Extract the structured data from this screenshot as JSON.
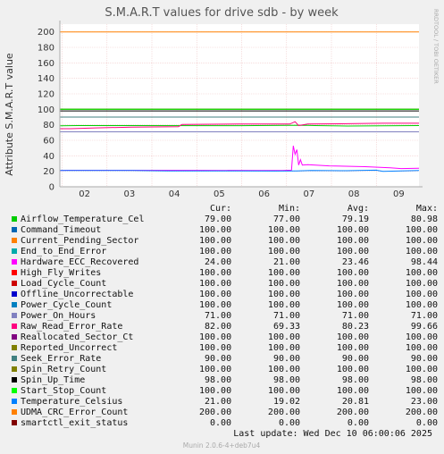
{
  "chart_data": {
    "type": "line",
    "title": "S.M.A.R.T values for drive sdb - by week",
    "ylabel": "Attribute S.M.A.R.T value",
    "xlabel": "",
    "ylim": [
      0,
      210
    ],
    "yticks": [
      0,
      20,
      40,
      60,
      80,
      100,
      120,
      140,
      160,
      180,
      200
    ],
    "x_labels": [
      "02",
      "03",
      "04",
      "05",
      "06",
      "07",
      "08",
      "09"
    ],
    "grid": true,
    "columns": [
      "Cur:",
      "Min:",
      "Avg:",
      "Max:"
    ],
    "series": [
      {
        "name": "Airflow_Temperature_Cel",
        "color": "#00cc00",
        "cur": "79.00",
        "min": "77.00",
        "avg": "79.19",
        "max": "80.98",
        "points": [
          [
            0,
            78.8
          ],
          [
            0.05,
            79
          ],
          [
            0.5,
            78.9
          ],
          [
            0.68,
            79.5
          ],
          [
            0.71,
            79
          ],
          [
            0.8,
            78.5
          ],
          [
            0.9,
            78.8
          ],
          [
            1,
            79
          ]
        ]
      },
      {
        "name": "Command_Timeout",
        "color": "#0066b3",
        "cur": "100.00",
        "min": "100.00",
        "avg": "100.00",
        "max": "100.00",
        "points": [
          [
            0,
            100
          ],
          [
            1,
            100
          ]
        ]
      },
      {
        "name": "Current_Pending_Sector",
        "color": "#ff8000",
        "cur": "100.00",
        "min": "100.00",
        "avg": "100.00",
        "max": "100.00",
        "points": [
          [
            0,
            100
          ],
          [
            1,
            100
          ]
        ]
      },
      {
        "name": "End_to_End_Error",
        "color": "#00aaaa",
        "cur": "100.00",
        "min": "100.00",
        "avg": "100.00",
        "max": "100.00",
        "points": [
          [
            0,
            100
          ],
          [
            1,
            100
          ]
        ]
      },
      {
        "name": "Hardware_ECC_Recovered",
        "color": "#ff00ff",
        "cur": "24.00",
        "min": "21.00",
        "avg": "23.46",
        "max": "98.44",
        "points": [
          [
            0,
            21
          ],
          [
            0.02,
            21.3
          ],
          [
            0.4,
            21.2
          ],
          [
            0.55,
            21
          ],
          [
            0.62,
            21
          ],
          [
            0.645,
            21.5
          ],
          [
            0.65,
            53
          ],
          [
            0.655,
            42
          ],
          [
            0.66,
            48
          ],
          [
            0.665,
            28
          ],
          [
            0.67,
            35
          ],
          [
            0.675,
            28
          ],
          [
            0.69,
            28.5
          ],
          [
            0.75,
            27
          ],
          [
            0.85,
            26
          ],
          [
            0.92,
            24.5
          ],
          [
            0.95,
            23.5
          ],
          [
            1,
            24
          ]
        ]
      },
      {
        "name": "High_Fly_Writes",
        "color": "#ff0000",
        "cur": "100.00",
        "min": "100.00",
        "avg": "100.00",
        "max": "100.00",
        "points": [
          [
            0,
            100
          ],
          [
            1,
            100
          ]
        ]
      },
      {
        "name": "Load_Cycle_Count",
        "color": "#cc0000",
        "cur": "100.00",
        "min": "100.00",
        "avg": "100.00",
        "max": "100.00",
        "points": [
          [
            0,
            100
          ],
          [
            1,
            100
          ]
        ]
      },
      {
        "name": "Offline_Uncorrectable",
        "color": "#0000cc",
        "cur": "100.00",
        "min": "100.00",
        "avg": "100.00",
        "max": "100.00",
        "points": [
          [
            0,
            100
          ],
          [
            1,
            100
          ]
        ]
      },
      {
        "name": "Power_Cycle_Count",
        "color": "#0080c0",
        "cur": "100.00",
        "min": "100.00",
        "avg": "100.00",
        "max": "100.00",
        "points": [
          [
            0,
            100
          ],
          [
            1,
            100
          ]
        ]
      },
      {
        "name": "Power_On_Hours",
        "color": "#8080c0",
        "cur": "71.00",
        "min": "71.00",
        "avg": "71.00",
        "max": "71.00",
        "points": [
          [
            0,
            71
          ],
          [
            1,
            71
          ]
        ]
      },
      {
        "name": "Raw_Read_Error_Rate",
        "color": "#ff0080",
        "cur": "82.00",
        "min": "69.33",
        "avg": "80.23",
        "max": "99.66",
        "points": [
          [
            0,
            75
          ],
          [
            0.03,
            75
          ],
          [
            0.1,
            76
          ],
          [
            0.2,
            77
          ],
          [
            0.33,
            77.5
          ],
          [
            0.34,
            80.5
          ],
          [
            0.5,
            81
          ],
          [
            0.64,
            81
          ],
          [
            0.655,
            84
          ],
          [
            0.665,
            79
          ],
          [
            0.69,
            81
          ],
          [
            0.8,
            81.5
          ],
          [
            0.9,
            82
          ],
          [
            1,
            82
          ]
        ]
      },
      {
        "name": "Reallocated_Sector_Ct",
        "color": "#800080",
        "cur": "100.00",
        "min": "100.00",
        "avg": "100.00",
        "max": "100.00",
        "points": [
          [
            0,
            100
          ],
          [
            1,
            100
          ]
        ]
      },
      {
        "name": "Reported_Uncorrect",
        "color": "#808000",
        "cur": "100.00",
        "min": "100.00",
        "avg": "100.00",
        "max": "100.00",
        "points": [
          [
            0,
            100
          ],
          [
            1,
            100
          ]
        ]
      },
      {
        "name": "Seek_Error_Rate",
        "color": "#408080",
        "cur": "90.00",
        "min": "90.00",
        "avg": "90.00",
        "max": "90.00",
        "points": [
          [
            0,
            90
          ],
          [
            1,
            90
          ]
        ]
      },
      {
        "name": "Spin_Retry_Count",
        "color": "#808000",
        "cur": "100.00",
        "min": "100.00",
        "avg": "100.00",
        "max": "100.00",
        "points": [
          [
            0,
            100
          ],
          [
            1,
            100
          ]
        ]
      },
      {
        "name": "Spin_Up_Time",
        "color": "#000000",
        "cur": "98.00",
        "min": "98.00",
        "avg": "98.00",
        "max": "98.00",
        "points": [
          [
            0,
            98
          ],
          [
            1,
            98
          ]
        ]
      },
      {
        "name": "Start_Stop_Count",
        "color": "#00ff00",
        "cur": "100.00",
        "min": "100.00",
        "avg": "100.00",
        "max": "100.00",
        "points": [
          [
            0,
            100
          ],
          [
            1,
            100
          ]
        ]
      },
      {
        "name": "Temperature_Celsius",
        "color": "#0080ff",
        "cur": "21.00",
        "min": "19.02",
        "avg": "20.81",
        "max": "23.00",
        "points": [
          [
            0,
            21
          ],
          [
            0.02,
            21
          ],
          [
            0.2,
            21
          ],
          [
            0.3,
            20.5
          ],
          [
            0.5,
            20.5
          ],
          [
            0.6,
            20.3
          ],
          [
            0.66,
            20.5
          ],
          [
            0.7,
            21
          ],
          [
            0.8,
            20.8
          ],
          [
            0.88,
            21.5
          ],
          [
            0.9,
            20
          ],
          [
            1,
            21
          ]
        ]
      },
      {
        "name": "UDMA_CRC_Error_Count",
        "color": "#ff8000",
        "cur": "200.00",
        "min": "200.00",
        "avg": "200.00",
        "max": "200.00",
        "points": [
          [
            0,
            200
          ],
          [
            1,
            200
          ]
        ]
      },
      {
        "name": "smartctl_exit_status",
        "color": "#800000",
        "cur": "0.00",
        "min": "0.00",
        "avg": "0.00",
        "max": "0.00",
        "points": [
          [
            0,
            0
          ],
          [
            1,
            0
          ]
        ]
      }
    ]
  },
  "side_label": "RRDTOOL / TOBI OETIKER",
  "last_update": "Last update:  Wed Dec 10 06:00:06 2025",
  "footer": "Munin 2.0.6-4+deb7u4"
}
